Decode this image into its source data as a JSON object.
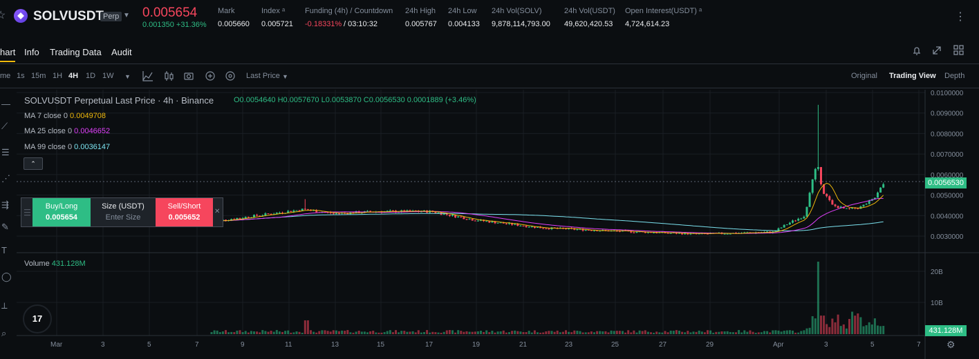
{
  "header": {
    "symbol": "SOLVUSDT",
    "contract_type": "Perp",
    "last_price": "0.005654",
    "change": "0.001350 +31.36%",
    "stats": [
      {
        "label": "Mark",
        "value": "0.005660"
      },
      {
        "label": "Index ᵃ",
        "value": "0.005721"
      },
      {
        "label": "Funding (4h) / Countdown",
        "value_rate": "-0.18331%",
        "value_cd": " / 03:10:32"
      },
      {
        "label": "24h High",
        "value": "0.005767"
      },
      {
        "label": "24h Low",
        "value": "0.004133"
      },
      {
        "label": "24h Vol(SOLV)",
        "value": "9,878,114,793.00"
      },
      {
        "label": "24h Vol(USDT)",
        "value": "49,620,420.53"
      },
      {
        "label": "Open Interest(USDT) ᵃ",
        "value": "4,724,614.23"
      }
    ]
  },
  "tabs": [
    "hart",
    "Info",
    "Trading Data",
    "Audit"
  ],
  "intervals": [
    "me",
    "1s",
    "15m",
    "1H",
    "4H",
    "1D",
    "1W"
  ],
  "price_type": "Last Price",
  "views": [
    "Original",
    "Trading View",
    "Depth"
  ],
  "legend": {
    "title": "SOLVUSDT Perpetual Last Price · 4h · Binance",
    "ohlc": "O0.0054640  H0.0057670  L0.0053870  C0.0056530  0.0001889  (+3.46%)",
    "ma": [
      {
        "label": "MA 7 close 0",
        "value": "0.0049708",
        "color": "#f0b90b"
      },
      {
        "label": "MA 25 close 0",
        "value": "0.0046652",
        "color": "#e040fb"
      },
      {
        "label": "MA 99 close 0",
        "value": "0.0036147",
        "color": "#7ce3f0"
      }
    ]
  },
  "trade_panel": {
    "buy_label": "Buy/Long",
    "buy_price": "0.005654",
    "size_label": "Size (USDT)",
    "size_placeholder": "Enter Size",
    "sell_label": "Sell/Short",
    "sell_price": "0.005652"
  },
  "volume": {
    "label": "Volume",
    "value": "431.128M"
  },
  "price_axis": [
    "0.0100000",
    "0.0090000",
    "0.0080000",
    "0.0070000",
    "0.0060000",
    "0.0050000",
    "0.0040000",
    "0.0030000"
  ],
  "current_price_tag": "0.0056530",
  "volume_axis": [
    "20B",
    "10B"
  ],
  "volume_tag": "431.128M",
  "date_axis": [
    "Mar",
    "3",
    "5",
    "7",
    "9",
    "11",
    "13",
    "15",
    "17",
    "19",
    "21",
    "23",
    "25",
    "27",
    "29",
    "Apr",
    "3",
    "5",
    "7"
  ],
  "colors": {
    "up": "#2ebd85",
    "down": "#f6465d",
    "ma7": "#f0b90b",
    "ma25": "#e040fb",
    "ma99": "#7ce3f0"
  },
  "chart_data": {
    "type": "candlestick",
    "interval": "4h",
    "ylim": [
      0.0025,
      0.0102
    ],
    "price_path_approx": [
      {
        "x": "Mar 11",
        "y": 0.0037
      },
      {
        "x": "Mar 12",
        "y": 0.0043
      },
      {
        "x": "Mar 14",
        "y": 0.0041
      },
      {
        "x": "Mar 17",
        "y": 0.0042
      },
      {
        "x": "Mar 20",
        "y": 0.0038
      },
      {
        "x": "Mar 24",
        "y": 0.0033
      },
      {
        "x": "Mar 29",
        "y": 0.0031
      },
      {
        "x": "Apr 1",
        "y": 0.0034
      },
      {
        "x": "Apr 2",
        "y": 0.0056
      },
      {
        "x": "Apr 2",
        "y": 0.0094
      },
      {
        "x": "Apr 3",
        "y": 0.0048
      },
      {
        "x": "Apr 4",
        "y": 0.0043
      },
      {
        "x": "Apr 5",
        "y": 0.00565
      }
    ]
  }
}
